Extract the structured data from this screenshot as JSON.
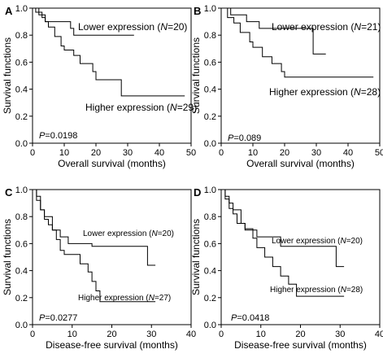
{
  "chart_data": [
    {
      "panel": "A",
      "type": "line",
      "ylabel": "Survival functions",
      "xlabel": "Overall survival (months)",
      "xlim": [
        0,
        50
      ],
      "ylim": [
        0,
        1.0
      ],
      "xticks": [
        0,
        10,
        20,
        30,
        40,
        50
      ],
      "yticks": [
        0.0,
        0.2,
        0.4,
        0.6,
        0.8,
        1.0
      ],
      "pvalue": "P=0.0198",
      "series": [
        {
          "name": "Lower expression (N=20)",
          "label_prefix": "Lower expression (",
          "n": "N",
          "label_count": "=20)",
          "points": [
            [
              0,
              1.0
            ],
            [
              2,
              0.95
            ],
            [
              4,
              0.9
            ],
            [
              8,
              0.9
            ],
            [
              12,
              0.85
            ],
            [
              13,
              0.8
            ],
            [
              32,
              0.8
            ]
          ]
        },
        {
          "name": "Higher expression (N=29)",
          "label_prefix": "Higher expression (",
          "n": "N",
          "label_count": "=29)",
          "points": [
            [
              0,
              1.0
            ],
            [
              1,
              0.97
            ],
            [
              3,
              0.93
            ],
            [
              4,
              0.9
            ],
            [
              5,
              0.86
            ],
            [
              7,
              0.79
            ],
            [
              9,
              0.72
            ],
            [
              10,
              0.69
            ],
            [
              13,
              0.65
            ],
            [
              15,
              0.59
            ],
            [
              19,
              0.53
            ],
            [
              20,
              0.47
            ],
            [
              26,
              0.47
            ],
            [
              28,
              0.35
            ],
            [
              48,
              0.35
            ]
          ]
        }
      ]
    },
    {
      "panel": "B",
      "type": "line",
      "ylabel": "Survival functions",
      "xlabel": "Overall survival (months)",
      "xlim": [
        0,
        50
      ],
      "ylim": [
        0,
        1.0
      ],
      "xticks": [
        0,
        10,
        20,
        30,
        40,
        50
      ],
      "yticks": [
        0.0,
        0.2,
        0.4,
        0.6,
        0.8,
        1.0
      ],
      "pvalue": "P=0.089",
      "series": [
        {
          "name": "Lower expression (N=21)",
          "label_prefix": "Lower expression (",
          "n": "N",
          "label_count": "=21)",
          "points": [
            [
              0,
              1.0
            ],
            [
              3,
              0.95
            ],
            [
              8,
              0.9
            ],
            [
              12,
              0.85
            ],
            [
              28,
              0.85
            ],
            [
              29,
              0.66
            ],
            [
              33,
              0.66
            ]
          ]
        },
        {
          "name": "Higher expression (N=28)",
          "label_prefix": "Higher expression (",
          "n": "N",
          "label_count": "=28)",
          "points": [
            [
              0,
              1.0
            ],
            [
              2,
              0.93
            ],
            [
              4,
              0.89
            ],
            [
              6,
              0.82
            ],
            [
              9,
              0.75
            ],
            [
              10,
              0.71
            ],
            [
              13,
              0.64
            ],
            [
              16,
              0.59
            ],
            [
              19,
              0.53
            ],
            [
              20,
              0.49
            ],
            [
              48,
              0.49
            ]
          ]
        }
      ]
    },
    {
      "panel": "C",
      "type": "line",
      "ylabel": "Survival functions",
      "xlabel": "Disease-free survival (months)",
      "xlim": [
        0,
        40
      ],
      "ylim": [
        0,
        1.0
      ],
      "xticks": [
        0,
        10,
        20,
        30,
        40
      ],
      "yticks": [
        0.0,
        0.2,
        0.4,
        0.6,
        0.8,
        1.0
      ],
      "pvalue": "P=0.0277",
      "series": [
        {
          "name": "Lower expression (N=20)",
          "label_prefix": "Lower expression (",
          "n": "N",
          "label_count": "=20)",
          "points": [
            [
              0,
              1.0
            ],
            [
              1,
              0.95
            ],
            [
              2,
              0.85
            ],
            [
              3,
              0.8
            ],
            [
              5,
              0.7
            ],
            [
              7,
              0.65
            ],
            [
              9,
              0.6
            ],
            [
              13,
              0.6
            ],
            [
              15,
              0.58
            ],
            [
              28,
              0.58
            ],
            [
              29,
              0.44
            ],
            [
              31,
              0.44
            ]
          ]
        },
        {
          "name": "Higher expression (N=27)",
          "label_prefix": "Higher expression (",
          "n": "N",
          "label_count": "=27)",
          "points": [
            [
              0,
              1.0
            ],
            [
              1,
              0.92
            ],
            [
              2,
              0.85
            ],
            [
              3,
              0.78
            ],
            [
              4,
              0.74
            ],
            [
              5,
              0.7
            ],
            [
              6,
              0.63
            ],
            [
              7,
              0.55
            ],
            [
              8,
              0.52
            ],
            [
              10,
              0.52
            ],
            [
              12,
              0.45
            ],
            [
              14,
              0.39
            ],
            [
              15,
              0.32
            ],
            [
              16,
              0.25
            ],
            [
              17,
              0.17
            ],
            [
              31,
              0.17
            ]
          ]
        }
      ]
    },
    {
      "panel": "D",
      "type": "line",
      "ylabel": "Survival functions",
      "xlabel": "Disease-free survival (months)",
      "xlim": [
        0,
        40
      ],
      "ylim": [
        0,
        1.0
      ],
      "xticks": [
        0,
        10,
        20,
        30,
        40
      ],
      "yticks": [
        0.0,
        0.2,
        0.4,
        0.6,
        0.8,
        1.0
      ],
      "pvalue": "P=0.0418",
      "series": [
        {
          "name": "Lower expression (N=20)",
          "label_prefix": "Lower expression (",
          "n": "N",
          "label_count": "=20)",
          "points": [
            [
              0,
              1.0
            ],
            [
              1,
              0.95
            ],
            [
              2,
              0.9
            ],
            [
              3,
              0.85
            ],
            [
              5,
              0.75
            ],
            [
              6,
              0.7
            ],
            [
              9,
              0.65
            ],
            [
              13,
              0.65
            ],
            [
              15,
              0.58
            ],
            [
              28,
              0.58
            ],
            [
              29,
              0.43
            ],
            [
              31,
              0.43
            ]
          ]
        },
        {
          "name": "Higher expression (N=28)",
          "label_prefix": "Higher expression (",
          "n": "N",
          "label_count": "=28)",
          "points": [
            [
              0,
              1.0
            ],
            [
              1,
              0.93
            ],
            [
              2,
              0.86
            ],
            [
              3,
              0.82
            ],
            [
              4,
              0.75
            ],
            [
              6,
              0.71
            ],
            [
              8,
              0.64
            ],
            [
              9,
              0.57
            ],
            [
              11,
              0.5
            ],
            [
              13,
              0.43
            ],
            [
              15,
              0.36
            ],
            [
              17,
              0.3
            ],
            [
              19,
              0.21
            ],
            [
              31,
              0.21
            ]
          ]
        }
      ]
    }
  ]
}
